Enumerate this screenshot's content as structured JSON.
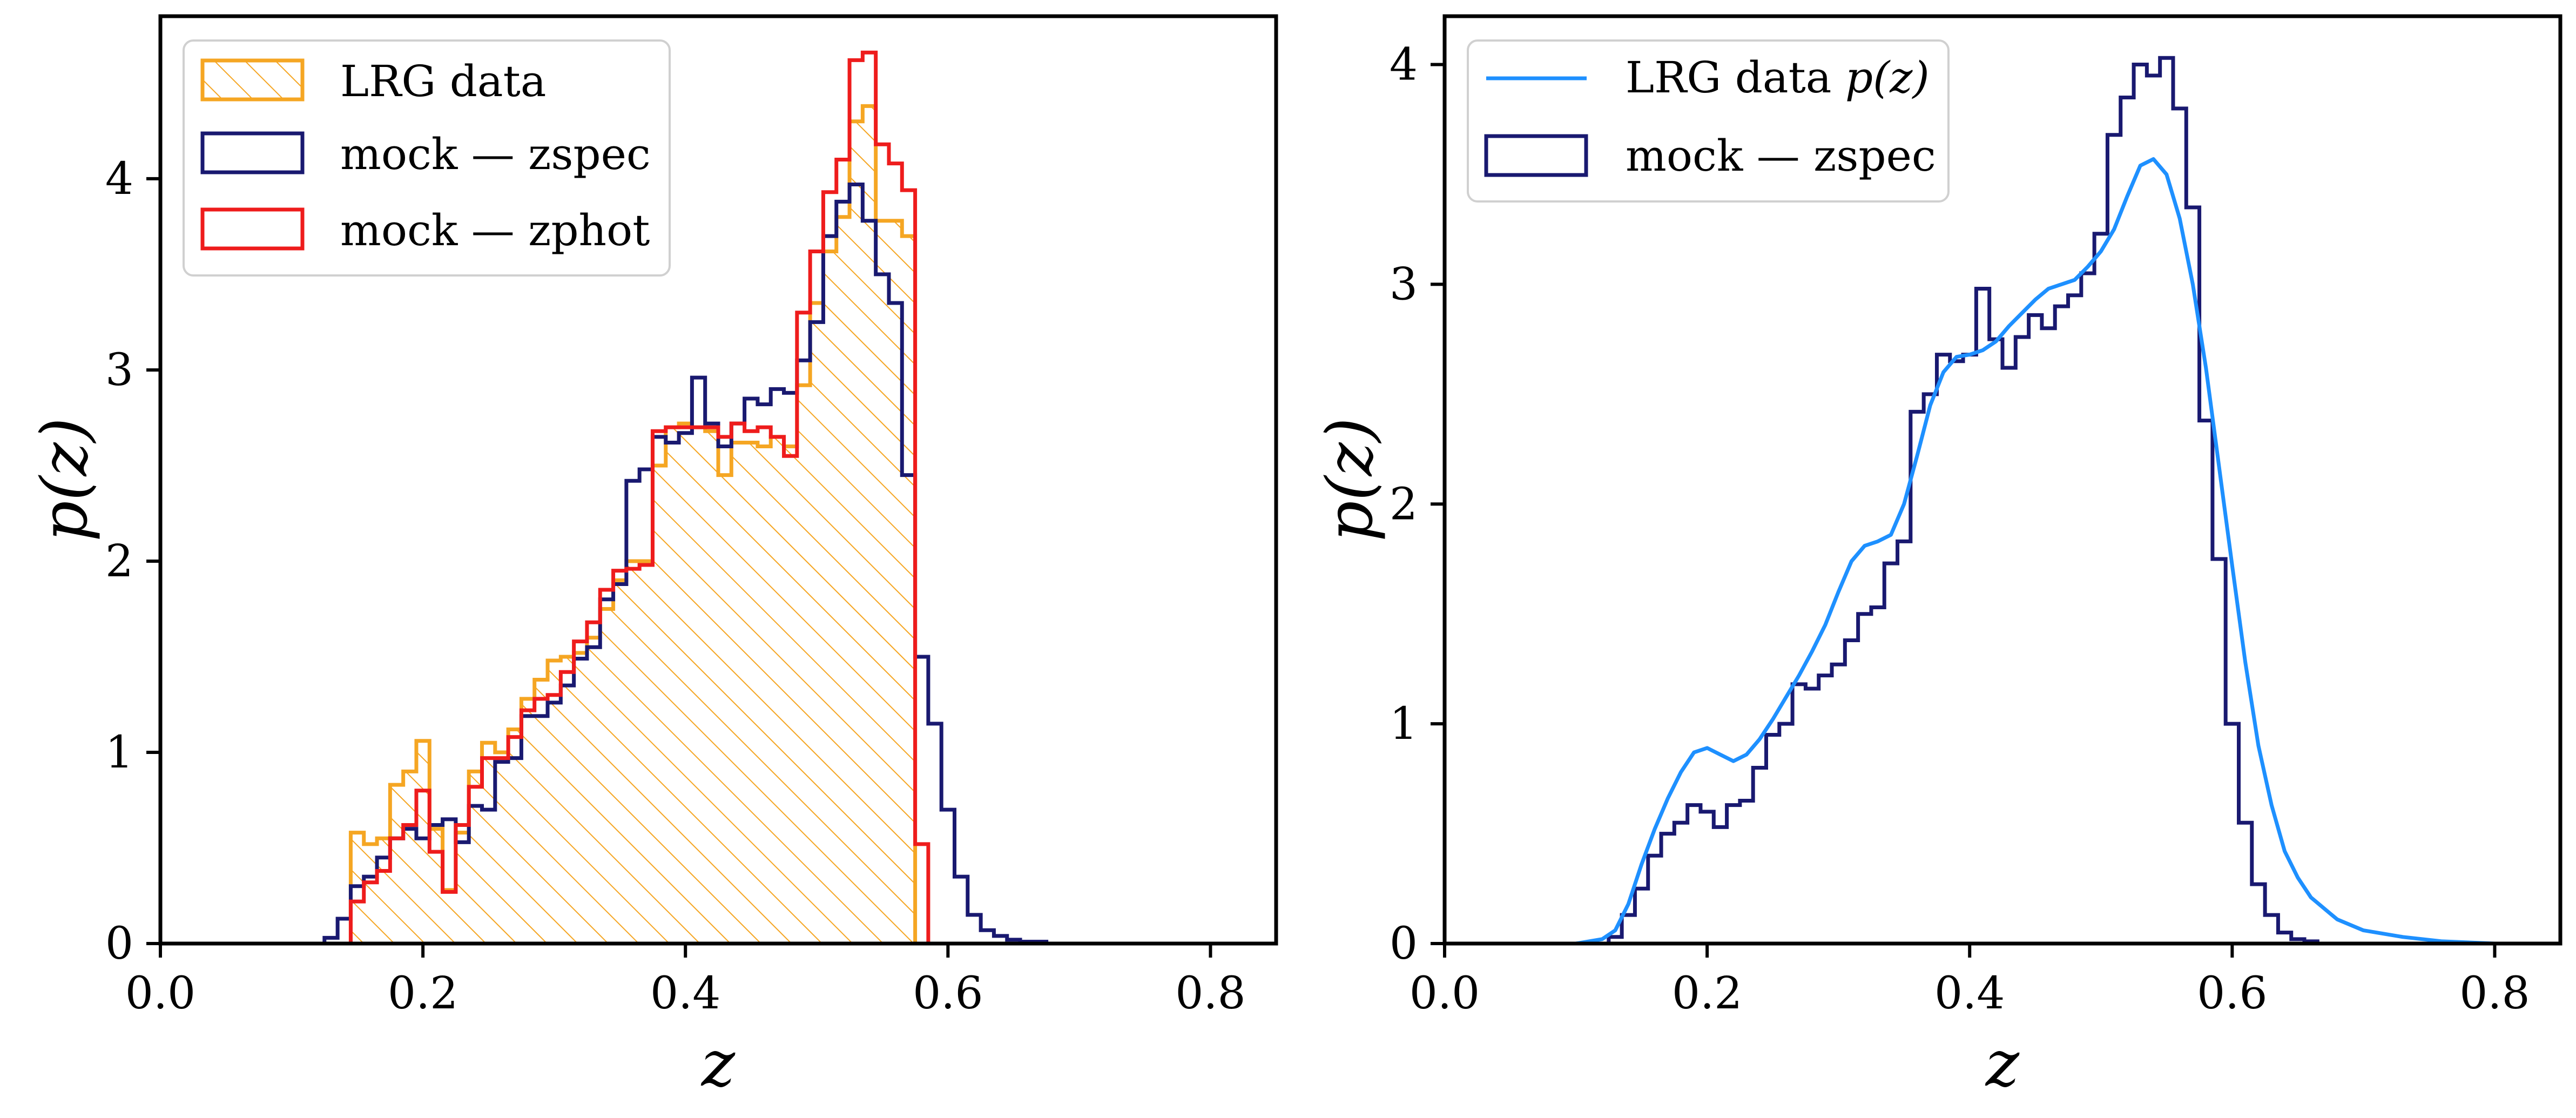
{
  "chart_data": [
    {
      "type": "histogram",
      "panel": "left",
      "xlabel": "z",
      "ylabel": "p(z)",
      "xlim": [
        0.0,
        0.85
      ],
      "ylim": [
        0,
        4.85
      ],
      "xticks": [
        0.0,
        0.2,
        0.4,
        0.6,
        0.8
      ],
      "xtick_labels": [
        "0.0",
        "0.2",
        "0.4",
        "0.6",
        "0.8"
      ],
      "yticks": [
        0,
        1,
        2,
        3,
        4
      ],
      "ytick_labels": [
        "0",
        "1",
        "2",
        "3",
        "4"
      ],
      "legend_position": "top-left",
      "bin_start": 0.125,
      "bin_width": 0.01,
      "series": [
        {
          "name": "LRG data",
          "style": "hatched-step",
          "color": "#f5a623",
          "values": [
            0,
            0,
            0.58,
            0.52,
            0.55,
            0.83,
            0.9,
            1.06,
            0.6,
            0.28,
            0.58,
            0.9,
            1.05,
            1.0,
            1.12,
            1.28,
            1.38,
            1.48,
            1.5,
            1.52,
            1.6,
            1.75,
            1.9,
            2.0,
            2.0,
            2.5,
            2.7,
            2.72,
            2.7,
            2.68,
            2.45,
            2.62,
            2.62,
            2.6,
            2.65,
            2.6,
            2.92,
            3.35,
            3.62,
            3.8,
            4.3,
            4.38,
            3.78,
            3.78,
            3.7,
            0,
            0,
            0,
            0,
            0,
            0,
            0,
            0,
            0,
            0,
            0,
            0,
            0
          ]
        },
        {
          "name": "mock — zspec",
          "style": "step",
          "color": "#191970",
          "values": [
            0.03,
            0.13,
            0.3,
            0.35,
            0.45,
            0.55,
            0.6,
            0.55,
            0.62,
            0.65,
            0.53,
            0.72,
            0.7,
            0.95,
            0.97,
            1.19,
            1.19,
            1.26,
            1.35,
            1.49,
            1.55,
            1.8,
            1.88,
            2.42,
            2.48,
            2.65,
            2.62,
            2.67,
            2.96,
            2.72,
            2.6,
            2.72,
            2.85,
            2.82,
            2.9,
            2.88,
            3.05,
            3.25,
            3.7,
            3.88,
            3.97,
            3.78,
            3.5,
            3.35,
            2.45,
            1.5,
            1.15,
            0.7,
            0.35,
            0.15,
            0.07,
            0.04,
            0.02,
            0.01,
            0.01,
            0,
            0,
            0
          ]
        },
        {
          "name": "mock — zphot",
          "style": "step",
          "color": "#ee1c1c",
          "values": [
            0,
            0,
            0.22,
            0.32,
            0.38,
            0.55,
            0.62,
            0.8,
            0.48,
            0.27,
            0.62,
            0.82,
            0.97,
            0.97,
            1.08,
            1.22,
            1.28,
            1.3,
            1.42,
            1.58,
            1.68,
            1.85,
            1.95,
            1.96,
            1.98,
            2.68,
            2.7,
            2.7,
            2.7,
            2.7,
            2.65,
            2.72,
            2.68,
            2.7,
            2.65,
            2.55,
            3.3,
            3.62,
            3.93,
            4.1,
            4.62,
            4.66,
            4.18,
            4.08,
            3.94,
            0.52,
            0,
            0,
            0,
            0,
            0,
            0,
            0,
            0,
            0,
            0,
            0,
            0
          ]
        }
      ]
    },
    {
      "type": "histogram+line",
      "panel": "right",
      "xlabel": "z",
      "ylabel": "p(z)",
      "xlim": [
        0.0,
        0.85
      ],
      "ylim": [
        0,
        4.22
      ],
      "xticks": [
        0.0,
        0.2,
        0.4,
        0.6,
        0.8
      ],
      "xtick_labels": [
        "0.0",
        "0.2",
        "0.4",
        "0.6",
        "0.8"
      ],
      "yticks": [
        0,
        1,
        2,
        3,
        4
      ],
      "ytick_labels": [
        "0",
        "1",
        "2",
        "3",
        "4"
      ],
      "legend_position": "top-left",
      "bin_start": 0.125,
      "bin_width": 0.01,
      "series": [
        {
          "name": "LRG data p(z)",
          "legend_prefix": "LRG data ",
          "legend_math": "p(z)",
          "style": "line",
          "color": "#1e90ff",
          "x": [
            0.0,
            0.1,
            0.12,
            0.13,
            0.14,
            0.15,
            0.16,
            0.17,
            0.18,
            0.19,
            0.2,
            0.21,
            0.22,
            0.23,
            0.24,
            0.25,
            0.26,
            0.27,
            0.28,
            0.29,
            0.3,
            0.31,
            0.32,
            0.33,
            0.34,
            0.35,
            0.36,
            0.37,
            0.38,
            0.39,
            0.4,
            0.41,
            0.42,
            0.43,
            0.44,
            0.45,
            0.46,
            0.47,
            0.48,
            0.49,
            0.5,
            0.51,
            0.52,
            0.53,
            0.54,
            0.55,
            0.56,
            0.57,
            0.58,
            0.59,
            0.6,
            0.61,
            0.62,
            0.63,
            0.64,
            0.65,
            0.66,
            0.68,
            0.7,
            0.73,
            0.76,
            0.8,
            0.85
          ],
          "y": [
            0.0,
            0.0,
            0.02,
            0.06,
            0.18,
            0.36,
            0.52,
            0.66,
            0.78,
            0.87,
            0.89,
            0.86,
            0.83,
            0.86,
            0.93,
            1.02,
            1.12,
            1.22,
            1.33,
            1.45,
            1.6,
            1.74,
            1.81,
            1.83,
            1.86,
            2.0,
            2.22,
            2.45,
            2.6,
            2.67,
            2.68,
            2.7,
            2.74,
            2.81,
            2.87,
            2.93,
            2.98,
            3.0,
            3.02,
            3.08,
            3.15,
            3.25,
            3.4,
            3.54,
            3.57,
            3.5,
            3.3,
            3.0,
            2.62,
            2.17,
            1.72,
            1.28,
            0.9,
            0.63,
            0.42,
            0.3,
            0.21,
            0.11,
            0.06,
            0.03,
            0.01,
            0.0,
            0.0
          ]
        },
        {
          "name": "mock — zspec",
          "style": "step",
          "color": "#191970",
          "values": [
            0.03,
            0.13,
            0.25,
            0.4,
            0.5,
            0.55,
            0.63,
            0.6,
            0.53,
            0.63,
            0.65,
            0.8,
            0.95,
            1.0,
            1.18,
            1.16,
            1.22,
            1.27,
            1.38,
            1.5,
            1.53,
            1.73,
            1.83,
            2.42,
            2.5,
            2.68,
            2.65,
            2.68,
            2.98,
            2.75,
            2.62,
            2.76,
            2.86,
            2.8,
            2.9,
            2.95,
            3.05,
            3.23,
            3.68,
            3.85,
            4.0,
            3.95,
            4.03,
            3.8,
            3.35,
            2.38,
            1.75,
            1.0,
            0.55,
            0.27,
            0.13,
            0.05,
            0.02,
            0.01,
            0,
            0,
            0,
            0
          ]
        }
      ]
    }
  ]
}
